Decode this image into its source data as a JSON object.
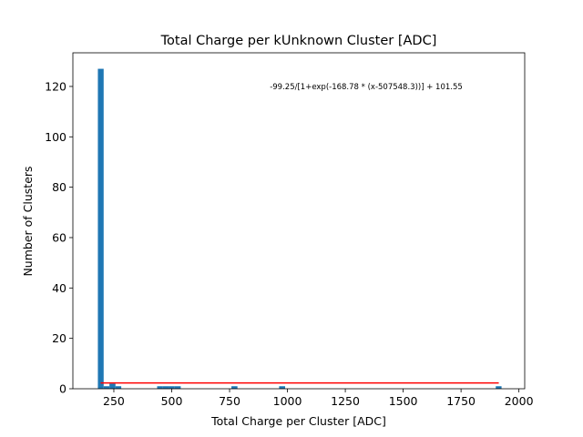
{
  "chart_data": {
    "type": "bar",
    "title": "Total Charge per kUnknown Cluster [ADC]",
    "xlabel": "Total Charge per Cluster [ADC]",
    "ylabel": "Number of Clusters",
    "xlim": [
      73,
      2025
    ],
    "ylim": [
      0,
      133.35
    ],
    "xticks": [
      250,
      500,
      750,
      1000,
      1250,
      1500,
      1750,
      2000
    ],
    "yticks": [
      0,
      20,
      40,
      60,
      80,
      100,
      120
    ],
    "bar_color": "#1f77b4",
    "fit_color": "#ff0000",
    "bins": [
      {
        "x0": 181,
        "x1": 206,
        "count": 127
      },
      {
        "x0": 206,
        "x1": 231,
        "count": 1
      },
      {
        "x0": 231,
        "x1": 257,
        "count": 2
      },
      {
        "x0": 257,
        "x1": 282,
        "count": 1
      },
      {
        "x0": 437,
        "x1": 462,
        "count": 1
      },
      {
        "x0": 462,
        "x1": 488,
        "count": 1
      },
      {
        "x0": 488,
        "x1": 513,
        "count": 1
      },
      {
        "x0": 513,
        "x1": 539,
        "count": 1
      },
      {
        "x0": 758,
        "x1": 784,
        "count": 1
      },
      {
        "x0": 964,
        "x1": 990,
        "count": 1
      },
      {
        "x0": 1900,
        "x1": 1925,
        "count": 1
      }
    ],
    "fit": {
      "label": "-99.25/[1+exp(-168.78 * (x-507548.3))] + 101.55",
      "x_range": [
        193,
        1913
      ],
      "y_value": 2.3
    },
    "grid": false
  }
}
